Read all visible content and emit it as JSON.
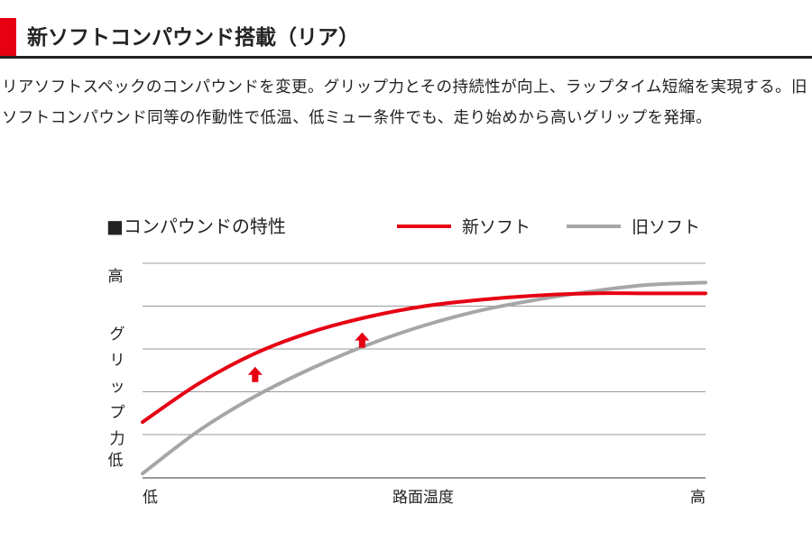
{
  "header": {
    "title": "新ソフトコンパウンド搭載（リア）"
  },
  "description": "リアソフトスペックのコンパウンドを変更。グリップ力とその持続性が向上、ラップタイム短縮を実現する。旧ソフトコンパウンド同等の作動性で低温、低ミュー条件でも、走り始めから高いグリップを発揮。",
  "colors": {
    "accent": "#e60012",
    "new_series": "#e60012",
    "old_series": "#a6a6a6",
    "grid": "#9a9a9a",
    "arrow": "#e60012"
  },
  "chart_data": {
    "type": "line",
    "title": "■コンパウンドの特性",
    "xlabel": "路面温度",
    "ylabel": "グリップ力",
    "x_ticks": [
      "低",
      "高"
    ],
    "y_ticks": [
      "低",
      "高"
    ],
    "xlim": [
      0,
      100
    ],
    "ylim": [
      0,
      100
    ],
    "grid": "horizontal",
    "legend": "top-right",
    "x": [
      0,
      10,
      20,
      30,
      40,
      50,
      60,
      70,
      80,
      90,
      100
    ],
    "series": [
      {
        "name": "新ソフト",
        "values": [
          26,
          44,
          58,
          68,
          75,
          80,
          83,
          85,
          86,
          86,
          86
        ]
      },
      {
        "name": "旧ソフト",
        "values": [
          2,
          22,
          38,
          51,
          62,
          71,
          78,
          83,
          87,
          90,
          91
        ]
      }
    ],
    "annotations": [
      {
        "type": "up-arrow",
        "x": 20,
        "y": 48
      },
      {
        "type": "up-arrow",
        "x": 39,
        "y": 64
      }
    ]
  }
}
